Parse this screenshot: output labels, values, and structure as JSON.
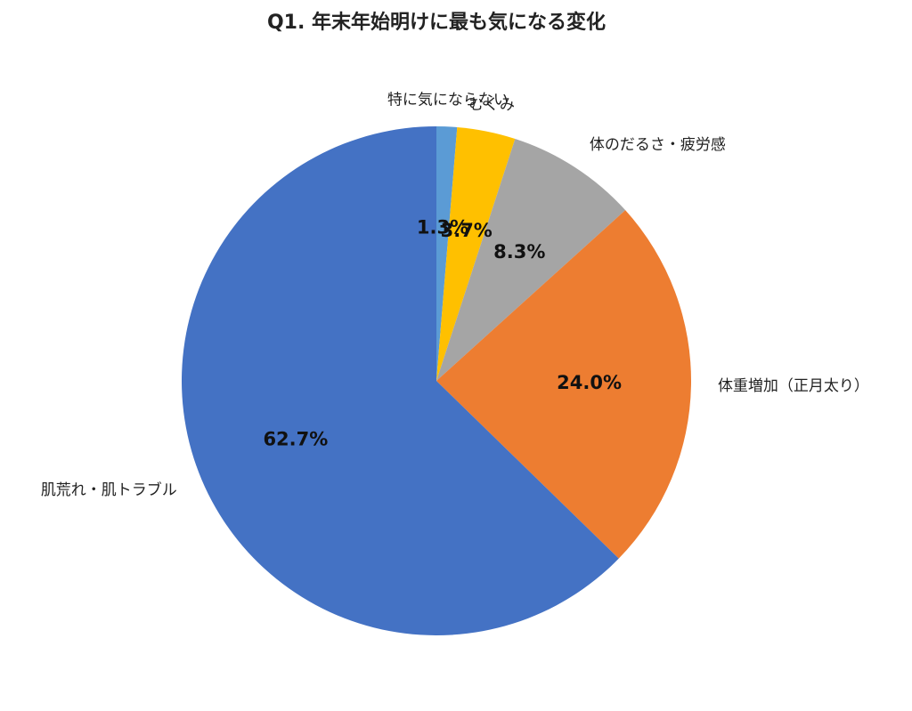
{
  "chart_data": {
    "type": "pie",
    "title": "Q1. 年末年始明けに最も気になる変化",
    "categories": [
      "特に気にならない",
      "むくみ",
      "体のだるさ・疲労感",
      "体重増加（正月太り）",
      "肌荒れ・肌トラブル"
    ],
    "values": [
      1.3,
      3.7,
      8.3,
      24.0,
      62.7
    ],
    "value_labels": [
      "1.3%",
      "3.7%",
      "8.3%",
      "24.0%",
      "62.7%"
    ],
    "colors": [
      "#5b9bd5",
      "#ffc000",
      "#a5a5a5",
      "#ed7d31",
      "#4472c4"
    ]
  }
}
